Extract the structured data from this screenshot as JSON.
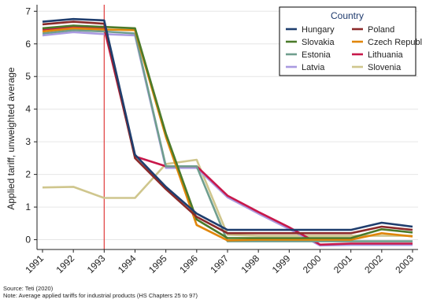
{
  "chart_data": {
    "type": "line",
    "title": "",
    "xlabel": "",
    "ylabel": "Applied tariff, unweighted average",
    "x": [
      1991,
      1992,
      1993,
      1994,
      1995,
      1996,
      1997,
      1998,
      1999,
      2000,
      2001,
      2002,
      2003
    ],
    "xlim": [
      1991,
      2003
    ],
    "ylim": [
      -0.3,
      7.2
    ],
    "yticks": [
      0,
      1,
      2,
      3,
      4,
      5,
      6,
      7
    ],
    "grid": true,
    "vline": 1993,
    "vline_color": "#e03c3c",
    "legend": {
      "title": "Country",
      "placement": "top-right"
    },
    "series": [
      {
        "name": "Hungary",
        "color": "#1f3e6e",
        "values": [
          6.68,
          6.76,
          6.72,
          2.6,
          1.62,
          0.8,
          0.3,
          0.3,
          0.3,
          0.3,
          0.3,
          0.52,
          0.4
        ]
      },
      {
        "name": "Poland",
        "color": "#8b2a2a",
        "values": [
          6.6,
          6.68,
          6.62,
          2.5,
          1.55,
          0.7,
          0.2,
          0.2,
          0.2,
          0.2,
          0.2,
          0.4,
          0.3
        ]
      },
      {
        "name": "Slovakia",
        "color": "#4b7a2a",
        "values": [
          6.48,
          6.56,
          6.52,
          6.48,
          3.25,
          0.62,
          0.05,
          0.05,
          0.05,
          0.05,
          0.05,
          0.32,
          0.22
        ]
      },
      {
        "name": "Czech Republic",
        "color": "#e0860a",
        "values": [
          6.38,
          6.48,
          6.44,
          6.42,
          3.15,
          0.45,
          -0.02,
          0.0,
          0.0,
          0.0,
          0.0,
          0.2,
          0.1
        ]
      },
      {
        "name": "Estonia",
        "color": "#6f9e8e",
        "values": [
          6.32,
          6.42,
          6.38,
          6.32,
          2.25,
          2.25,
          -0.05,
          -0.05,
          -0.05,
          -0.05,
          -0.05,
          -0.05,
          -0.05
        ]
      },
      {
        "name": "Lithuania",
        "color": "#c8184a",
        "values": [
          6.44,
          6.52,
          6.48,
          2.55,
          2.25,
          2.25,
          1.35,
          0.85,
          0.38,
          -0.15,
          -0.12,
          -0.12,
          -0.12
        ]
      },
      {
        "name": "Latvia",
        "color": "#a99ae0",
        "values": [
          6.26,
          6.36,
          6.3,
          6.26,
          2.2,
          2.2,
          1.3,
          0.8,
          0.33,
          -0.18,
          -0.16,
          -0.16,
          -0.16
        ]
      },
      {
        "name": "Slovenia",
        "color": "#cfc68d",
        "values": [
          1.6,
          1.62,
          1.28,
          1.28,
          2.32,
          2.45,
          0.15,
          0.12,
          0.12,
          0.12,
          0.12,
          0.12,
          0.12
        ]
      }
    ],
    "notes": [
      "Source: Teti (2020)",
      "Note: Average applied tariffs for industrial products (HS Chapters 25 to 97)"
    ]
  }
}
